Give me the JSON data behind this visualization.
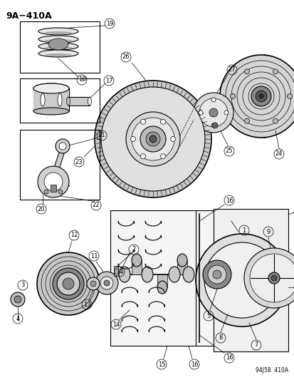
{
  "title": "9A−410A",
  "background_color": "#ffffff",
  "line_color": "#000000",
  "figure_width": 4.14,
  "figure_height": 5.33,
  "dpi": 100,
  "watermark": "94J58  410A"
}
